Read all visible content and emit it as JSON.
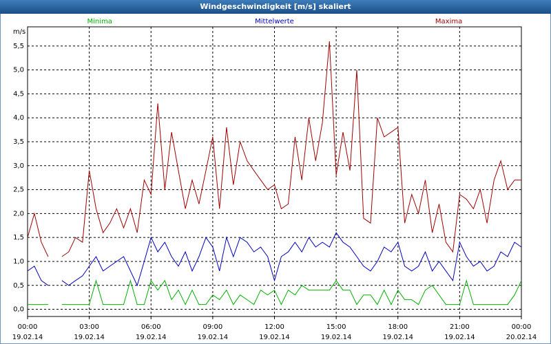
{
  "chart_data": {
    "type": "line",
    "title": "Windgeschwindigkeit [m/s] skaliert",
    "ylabel": "m/s",
    "x": [
      0,
      0.33,
      0.67,
      1,
      1.33,
      1.67,
      2,
      2.33,
      2.67,
      3,
      3.33,
      3.67,
      4,
      4.33,
      4.67,
      5,
      5.33,
      5.67,
      6,
      6.33,
      6.67,
      7,
      7.33,
      7.67,
      8,
      8.33,
      8.67,
      9,
      9.33,
      9.67,
      10,
      10.33,
      10.67,
      11,
      11.33,
      11.67,
      12,
      12.33,
      12.67,
      13,
      13.33,
      13.67,
      14,
      14.33,
      14.67,
      15,
      15.33,
      15.67,
      16,
      16.33,
      16.67,
      17,
      17.33,
      17.67,
      18,
      18.33,
      18.67,
      19,
      19.33,
      19.67,
      20,
      20.33,
      20.67,
      21,
      21.33,
      21.67,
      22,
      22.33,
      22.67,
      23,
      23.33,
      23.67,
      24
    ],
    "series": [
      {
        "name": "Minima",
        "color": "#00b000",
        "values": [
          0.1,
          0.1,
          0.1,
          0.1,
          null,
          0.1,
          0.1,
          0.1,
          0.1,
          0.1,
          0.6,
          0.1,
          0.1,
          0.1,
          0.1,
          0.6,
          0.1,
          0.1,
          0.6,
          0.4,
          0.6,
          0.2,
          0.4,
          0.1,
          0.4,
          0.1,
          0.1,
          0.3,
          0.2,
          0.4,
          0.1,
          0.3,
          0.2,
          0.1,
          0.4,
          0.3,
          0.4,
          0.1,
          0.4,
          0.3,
          0.5,
          0.4,
          0.4,
          0.4,
          0.4,
          0.6,
          0.4,
          0.4,
          0.1,
          0.3,
          0.3,
          0.1,
          0.4,
          0.1,
          0.4,
          0.2,
          0.2,
          0.1,
          0.4,
          0.5,
          0.3,
          0.1,
          0.1,
          0.1,
          0.6,
          0.1,
          0.1,
          0.1,
          0.1,
          0.1,
          0.1,
          0.3,
          0.6
        ]
      },
      {
        "name": "Mittelwerte",
        "color": "#0000c0",
        "values": [
          0.8,
          0.9,
          0.6,
          0.5,
          null,
          0.6,
          0.5,
          0.6,
          0.7,
          0.9,
          1.1,
          0.8,
          0.9,
          1.0,
          1.1,
          0.8,
          0.5,
          1.0,
          1.5,
          1.2,
          1.4,
          1.1,
          0.9,
          1.2,
          0.8,
          1.1,
          1.5,
          1.3,
          0.8,
          1.5,
          1.1,
          1.5,
          1.4,
          1.2,
          1.3,
          1.1,
          0.6,
          1.1,
          1.2,
          1.4,
          1.2,
          1.5,
          1.3,
          1.4,
          1.3,
          1.6,
          1.4,
          1.3,
          1.1,
          0.9,
          0.8,
          1.0,
          1.3,
          1.2,
          1.4,
          0.9,
          0.8,
          0.9,
          1.2,
          0.8,
          1.0,
          0.8,
          0.6,
          1.4,
          1.1,
          0.9,
          1.0,
          0.8,
          0.9,
          1.2,
          1.1,
          1.4,
          1.3
        ]
      },
      {
        "name": "Maxima",
        "color": "#a00000",
        "values": [
          1.5,
          2.0,
          1.4,
          1.1,
          null,
          1.1,
          1.2,
          1.5,
          1.4,
          2.9,
          2.1,
          1.6,
          1.8,
          2.1,
          1.7,
          2.1,
          1.6,
          2.7,
          2.4,
          4.3,
          2.5,
          3.7,
          2.9,
          2.1,
          2.7,
          2.2,
          2.9,
          3.6,
          2.1,
          3.8,
          2.6,
          3.5,
          3.1,
          2.9,
          2.7,
          2.5,
          2.6,
          2.1,
          2.2,
          3.6,
          2.7,
          4.0,
          3.1,
          3.9,
          5.6,
          2.8,
          3.7,
          2.9,
          5.0,
          1.9,
          1.8,
          4.0,
          3.6,
          3.7,
          3.8,
          1.8,
          2.4,
          2.0,
          2.7,
          1.6,
          2.2,
          1.4,
          1.2,
          2.4,
          2.3,
          2.1,
          2.5,
          1.8,
          2.7,
          3.1,
          2.5,
          2.7,
          2.7
        ]
      }
    ],
    "xlim": [
      0,
      24
    ],
    "xticks": [
      {
        "value": 0,
        "label": "00:00"
      },
      {
        "value": 3,
        "label": "03:00"
      },
      {
        "value": 6,
        "label": "06:00"
      },
      {
        "value": 9,
        "label": "09:00"
      },
      {
        "value": 12,
        "label": "12:00"
      },
      {
        "value": 15,
        "label": "15:00"
      },
      {
        "value": 18,
        "label": "18:00"
      },
      {
        "value": 21,
        "label": "21:00"
      },
      {
        "value": 24,
        "label": "00:00"
      }
    ],
    "x_dates": [
      "19.02.14",
      "19.02.14",
      "19.02.14",
      "19.02.14",
      "19.02.14",
      "19.02.14",
      "19.02.14",
      "19.02.14",
      "20.02.14"
    ],
    "ylim": [
      -0.15,
      5.9
    ],
    "yticks": [
      {
        "value": 0,
        "label": "0,0"
      },
      {
        "value": 0.5,
        "label": "0,5"
      },
      {
        "value": 1,
        "label": "1,0"
      },
      {
        "value": 1.5,
        "label": "1,5"
      },
      {
        "value": 2,
        "label": "2,0"
      },
      {
        "value": 2.5,
        "label": "2,5"
      },
      {
        "value": 3,
        "label": "3,0"
      },
      {
        "value": 3.5,
        "label": "3,5"
      },
      {
        "value": 4,
        "label": "4,0"
      },
      {
        "value": 4.5,
        "label": "4,5"
      },
      {
        "value": 5,
        "label": "5,0"
      },
      {
        "value": 5.5,
        "label": "5,5"
      }
    ],
    "grid": true
  }
}
